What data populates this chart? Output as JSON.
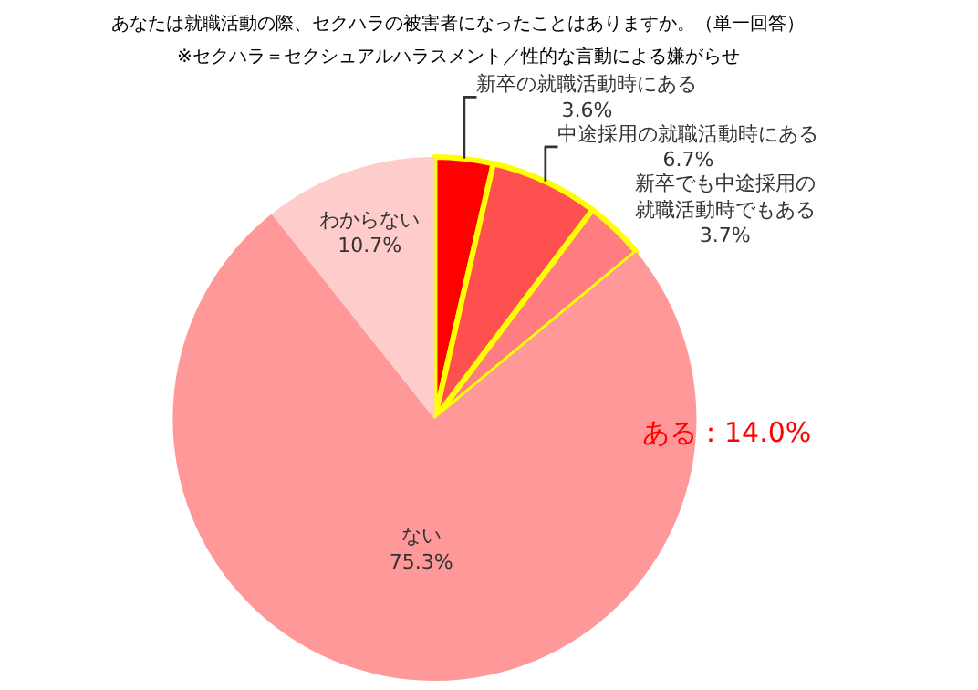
{
  "chart_data": {
    "type": "pie",
    "title": "あなたは就職活動の際、セクハラの被害者になったことはありますか。（単一回答）",
    "subtitle": "※セクハラ＝セクシュアルハラスメント／性的な言動による嫌がらせ",
    "categories": [
      "新卒の就職活動時にある",
      "中途採用の就職活動時にある",
      "新卒でも中途採用の就職活動時でもある",
      "ない",
      "わからない"
    ],
    "values": [
      3.6,
      6.7,
      3.7,
      75.3,
      10.7
    ],
    "colors": [
      "#ff0000",
      "#ff5050",
      "#ff7c80",
      "#ff9999",
      "#ffcccc"
    ],
    "value_labels": [
      "3.6%",
      "6.7%",
      "3.7%",
      "75.3%",
      "10.7%"
    ],
    "legend": false,
    "annotations": [
      "ある：14.0%"
    ]
  }
}
